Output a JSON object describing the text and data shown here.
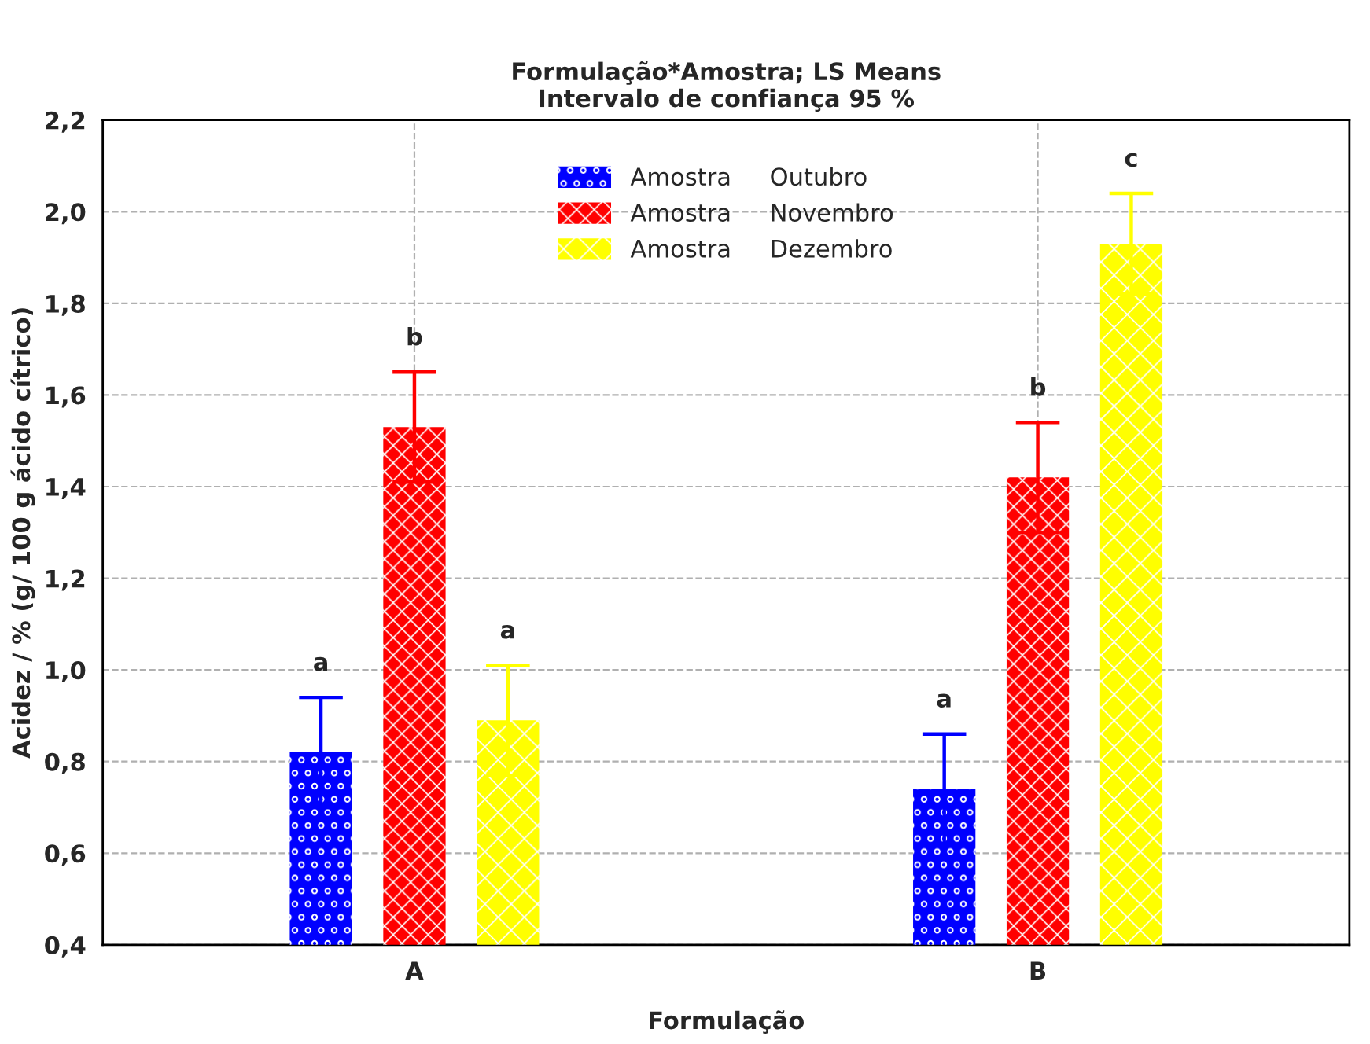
{
  "chart_data": {
    "type": "bar",
    "title": "Formulação*Amostra; LS Means\nIntervalo de confiança 95 %",
    "xlabel": "Formulação",
    "ylabel": "Acidez / % (g/ 100 g ácido cítrico)",
    "categories": [
      "A",
      "B"
    ],
    "series": [
      {
        "name": "Amostra     Outubro",
        "color": "#0000ff",
        "values": [
          0.82,
          0.74
        ],
        "errors": [
          0.12,
          0.12
        ]
      },
      {
        "name": "Amostra     Novembro",
        "color": "#ff0000",
        "values": [
          1.53,
          1.42
        ],
        "errors": [
          0.12,
          0.12
        ]
      },
      {
        "name": "Amostra     Dezembro",
        "color": "#ffff00",
        "values": [
          0.89,
          1.93
        ],
        "errors": [
          0.12,
          0.11
        ]
      }
    ],
    "ylim": [
      0.4,
      2.2
    ],
    "yticks": [
      {
        "value": 0.4,
        "label": "0,4"
      },
      {
        "value": 0.6,
        "label": "0,6"
      },
      {
        "value": 0.8,
        "label": "0,8"
      },
      {
        "value": 1.0,
        "label": "1,0"
      },
      {
        "value": 1.2,
        "label": "1,2"
      },
      {
        "value": 1.4,
        "label": "1,4"
      },
      {
        "value": 1.6,
        "label": "1,6"
      },
      {
        "value": 1.8,
        "label": "1,8"
      },
      {
        "value": 2.0,
        "label": "2,0"
      },
      {
        "value": 2.2,
        "label": "2,2"
      }
    ],
    "annotations": [
      "a",
      "b",
      "a",
      "a",
      "b",
      "c"
    ],
    "grid": true,
    "legend": "top"
  }
}
